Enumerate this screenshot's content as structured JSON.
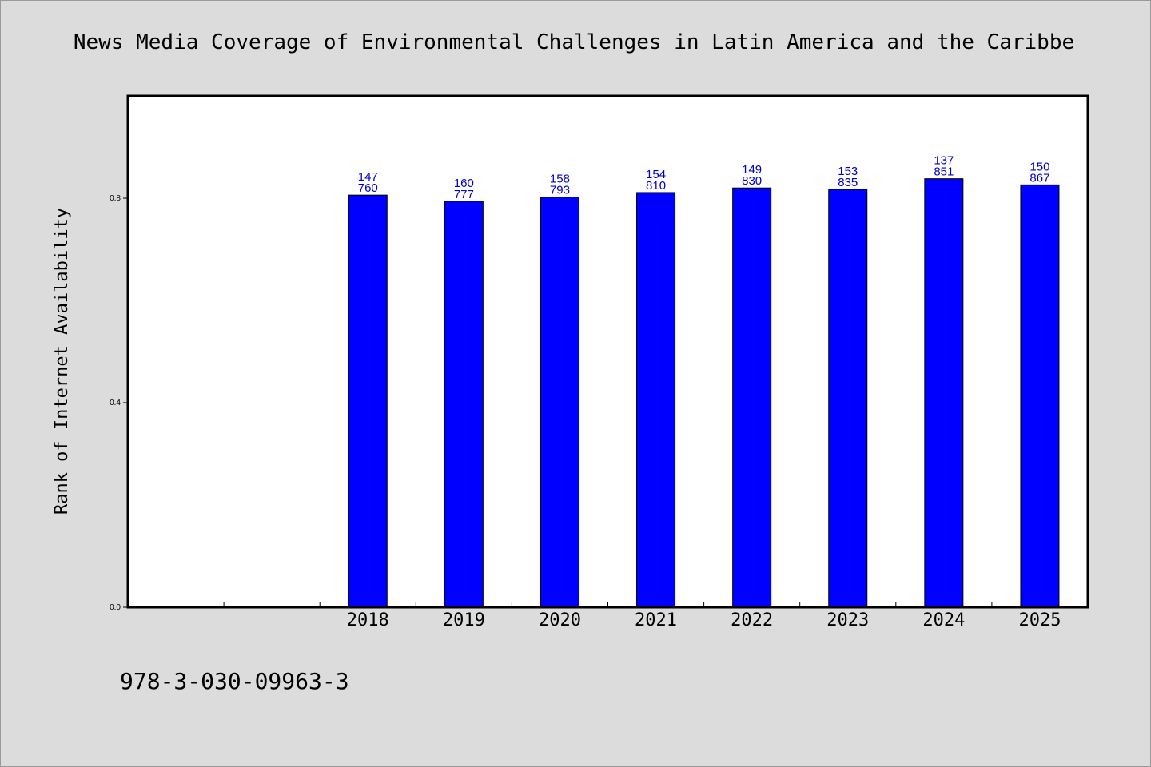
{
  "colors": {
    "background": "#dcdcdc",
    "plot_bg": "#ffffff",
    "bar": "#0000ff",
    "label": "#0000cc"
  },
  "footer_text": "978-3-030-09963-3",
  "chart_data": {
    "type": "bar",
    "title": "News Media Coverage of Environmental Challenges in Latin America and the Caribbe",
    "xlabel": "",
    "ylabel": "Rank of Internet Availability",
    "categories": [
      "",
      "",
      "2018",
      "2019",
      "2020",
      "2021",
      "2022",
      "2023",
      "2024",
      "2025"
    ],
    "values": [
      null,
      null,
      0.806,
      0.794,
      0.802,
      0.811,
      0.82,
      0.817,
      0.838,
      0.826
    ],
    "data_labels": [
      [
        "",
        ""
      ],
      [
        "",
        ""
      ],
      [
        "147",
        "760"
      ],
      [
        "160",
        "777"
      ],
      [
        "158",
        "793"
      ],
      [
        "154",
        "810"
      ],
      [
        "149",
        "830"
      ],
      [
        "153",
        "835"
      ],
      [
        "137",
        "851"
      ],
      [
        "150",
        "867"
      ]
    ],
    "ylim": [
      0,
      1.0
    ],
    "yticks": [
      0.0,
      0.4,
      0.8
    ],
    "ytick_labels": [
      "0.0",
      "0.4",
      "0.8"
    ],
    "grid": false,
    "legend": "none"
  }
}
